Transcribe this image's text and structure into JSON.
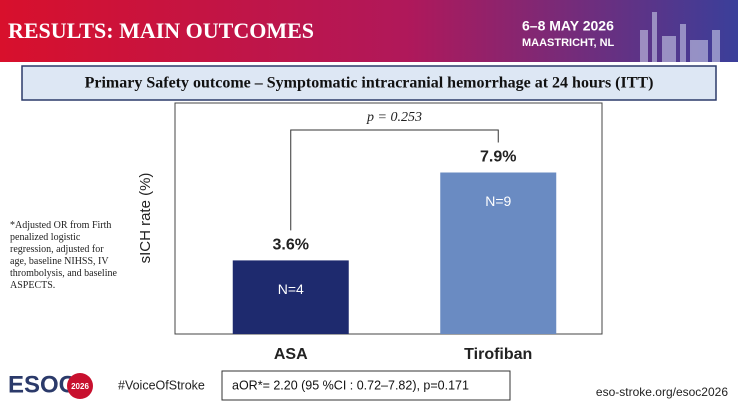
{
  "header": {
    "title": "RESULTS: MAIN OUTCOMES",
    "date": "6–8 MAY 2026",
    "location": "MAASTRICHT, NL"
  },
  "chart_data": {
    "type": "bar",
    "title": "Primary Safety outcome – Symptomatic intracranial hemorrhage at 24 hours (ITT)",
    "y_label": "sICH rate (%)",
    "categories": [
      "ASA",
      "Tirofiban"
    ],
    "values": [
      3.6,
      7.9
    ],
    "value_labels": [
      "3.6%",
      "7.9%"
    ],
    "n_labels": [
      "N=4",
      "N=9"
    ],
    "colors": [
      "#1e2a6e",
      "#6a8bc2"
    ],
    "annotation": "p = 0.253",
    "ylim": [
      0,
      11.3
    ]
  },
  "footnote": "*Adjusted OR from Firth penalized logistic regression, adjusted for age, baseline NIHSS, IV thrombolysis, and baseline ASPECTS.",
  "footer": {
    "logo": "ESOC",
    "logo_year": "2026",
    "hashtag": "#VoiceOfStroke",
    "result": "aOR*= 2.20 (95 %CI : 0.72–7.82), p=0.171",
    "url": "eso-stroke.org/esoc2026"
  }
}
